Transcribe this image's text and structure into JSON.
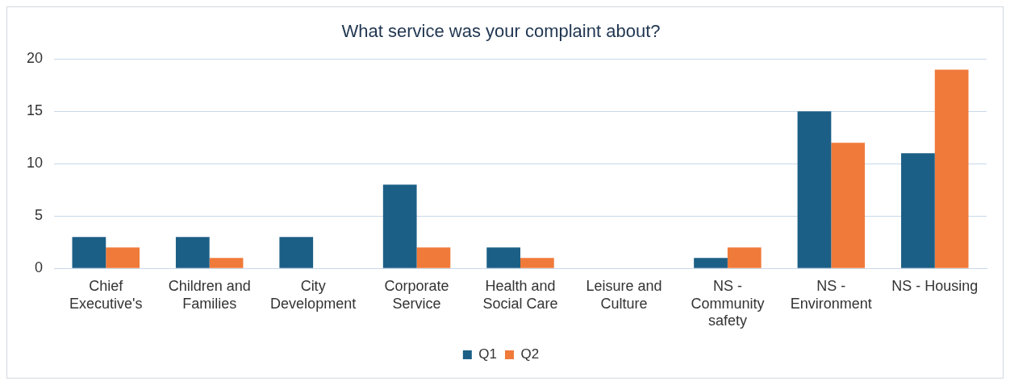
{
  "chart_data": {
    "type": "bar",
    "title": "What service was your complaint about?",
    "categories": [
      "Chief Executive's",
      "Children and Families",
      "City Development",
      "Corporate Service",
      "Health and Social Care",
      "Leisure and Culture",
      "NS - Community safety",
      "NS - Environment",
      "NS - Housing"
    ],
    "series": [
      {
        "name": "Q1",
        "color": "#1c5f86",
        "values": [
          3,
          3,
          3,
          8,
          2,
          0,
          1,
          15,
          11
        ]
      },
      {
        "name": "Q2",
        "color": "#f07a3a",
        "values": [
          2,
          1,
          0,
          2,
          1,
          0,
          2,
          12,
          19
        ]
      }
    ],
    "ylim": [
      0,
      20
    ],
    "yticks": [
      0,
      5,
      10,
      15,
      20
    ],
    "grid": "y",
    "legend": "bottom"
  }
}
